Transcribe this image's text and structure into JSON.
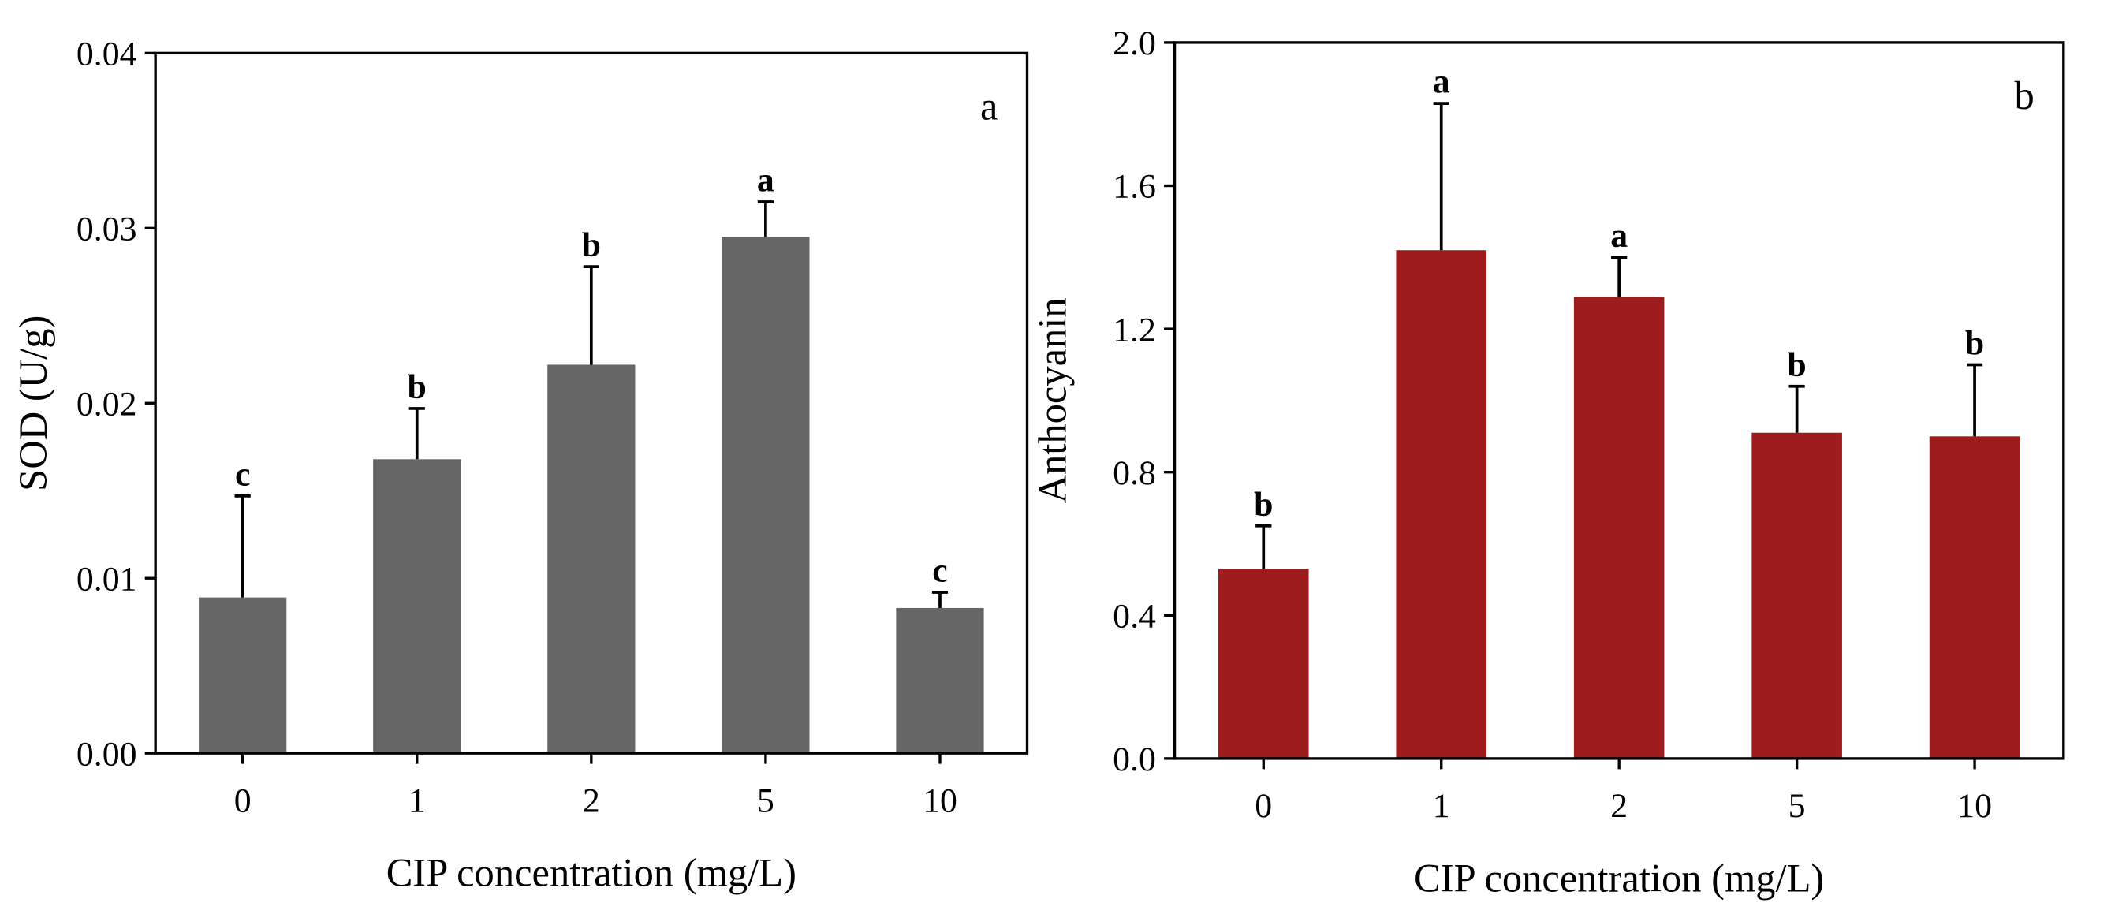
{
  "chart_data": [
    {
      "type": "bar",
      "panel_label": "a",
      "title": "",
      "xlabel": "CIP concentration (mg/L)",
      "ylabel": "SOD (U/g)",
      "categories": [
        "0",
        "1",
        "2",
        "5",
        "10"
      ],
      "values": [
        0.0089,
        0.0168,
        0.0222,
        0.0295,
        0.0083
      ],
      "error_upper": [
        0.0147,
        0.0197,
        0.0278,
        0.0315,
        0.0092
      ],
      "significance": [
        "c",
        "b",
        "b",
        "a",
        "c"
      ],
      "ylim": [
        0,
        0.04
      ],
      "yticks": [
        "0.00",
        "0.01",
        "0.02",
        "0.03",
        "0.04"
      ],
      "ytick_values": [
        0,
        0.01,
        0.02,
        0.03,
        0.04
      ],
      "color": "#666666",
      "grid": false
    },
    {
      "type": "bar",
      "panel_label": "b",
      "title": "",
      "xlabel": "CIP concentration (mg/L)",
      "ylabel": "Anthocyanin",
      "categories": [
        "0",
        "1",
        "2",
        "5",
        "10"
      ],
      "values": [
        0.53,
        1.42,
        1.29,
        0.91,
        0.9
      ],
      "error_upper": [
        0.65,
        1.83,
        1.4,
        1.04,
        1.1
      ],
      "significance": [
        "b",
        "a",
        "a",
        "b",
        "b"
      ],
      "ylim": [
        0,
        2.0
      ],
      "yticks": [
        "0.0",
        "0.4",
        "0.8",
        "1.2",
        "1.6",
        "2.0"
      ],
      "ytick_values": [
        0,
        0.4,
        0.8,
        1.2,
        1.6,
        2.0
      ],
      "color": "#9e1b1e",
      "grid": false
    }
  ]
}
